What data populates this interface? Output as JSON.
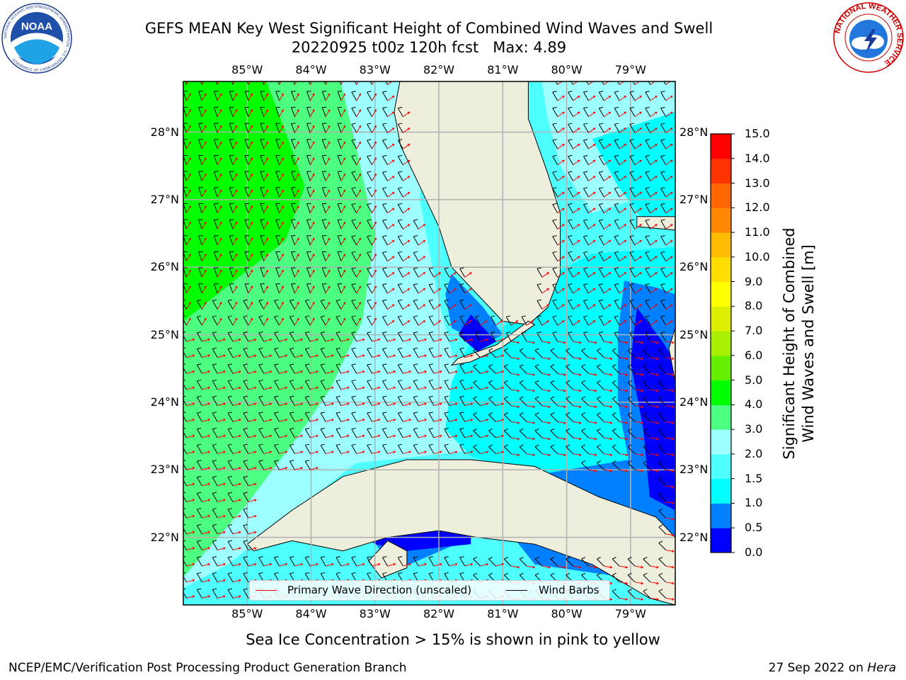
{
  "title": {
    "line1": "GEFS MEAN Key West Significant Height of Combined Wind Waves and Swell",
    "line2": "20220925 t00z 120h fcst   Max: 4.89"
  },
  "map": {
    "lon_labels": [
      "85°W",
      "84°W",
      "83°W",
      "82°W",
      "81°W",
      "80°W",
      "79°W"
    ],
    "lat_labels": [
      "28°N",
      "27°N",
      "26°N",
      "25°N",
      "24°N",
      "23°N",
      "22°N"
    ],
    "lon_range": [
      -86.0,
      -78.3
    ],
    "lat_range": [
      21.0,
      28.75
    ],
    "land_color": "#eeeedd",
    "grid_color": "#b0b0b0"
  },
  "legend": {
    "wave_direction": "Primary Wave Direction (unscaled)",
    "wind_barbs": "Wind Barbs",
    "wave_color": "#ff0000",
    "barb_color": "#000000"
  },
  "colorbar": {
    "title_line1": "Significant Height of Combined",
    "title_line2": "Wind Waves and Swell [m]",
    "labels": [
      "15.0",
      "14.0",
      "13.0",
      "12.0",
      "11.0",
      "10.0",
      "9.0",
      "8.0",
      "7.0",
      "6.0",
      "5.0",
      "4.0",
      "3.0",
      "2.0",
      "1.5",
      "1.0",
      "0.5",
      "0.0"
    ],
    "colors": [
      "#0000ff",
      "#0080ff",
      "#00ffff",
      "#4dffff",
      "#9dffff",
      "#4dff80",
      "#00ff00",
      "#66ee00",
      "#aaee00",
      "#ddee00",
      "#ffff00",
      "#ffdd00",
      "#ffbb00",
      "#ff8800",
      "#ff6600",
      "#ff3300",
      "#ff0000"
    ]
  },
  "subcaption": "Sea Ice Concentration > 15% is shown in pink to yellow",
  "footer": {
    "left": "NCEP/EMC/Verification Post Processing Product Generation Branch",
    "right_prefix": "27 Sep 2022 on ",
    "right_italic": "Hera"
  },
  "logos": {
    "noaa": "NOAA",
    "noaa_ring": "NATIONAL OCEANIC AND ATMOSPHERIC ADMINISTRATION · U.S. DEPARTMENT OF COMMERCE",
    "nws_ring": "NATIONAL WEATHER SERVICE"
  }
}
